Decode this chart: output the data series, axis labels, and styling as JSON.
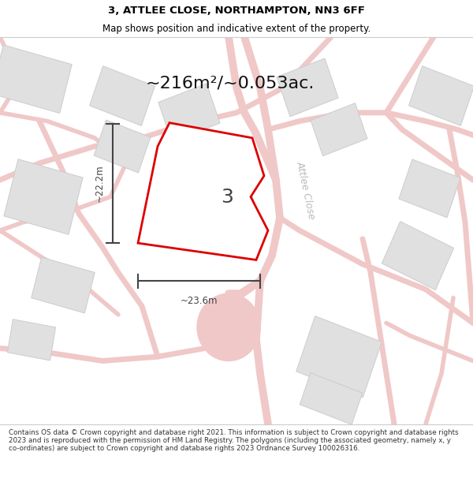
{
  "title_line1": "3, ATTLEE CLOSE, NORTHAMPTON, NN3 6FF",
  "title_line2": "Map shows position and indicative extent of the property.",
  "area_label": "~216m²/~0.053ac.",
  "number_label": "3",
  "width_label": "~23.6m",
  "height_label": "~22.2m",
  "street_label": "Attlee Close",
  "footer_text": "Contains OS data © Crown copyright and database right 2021. This information is subject to Crown copyright and database rights 2023 and is reproduced with the permission of HM Land Registry. The polygons (including the associated geometry, namely x, y co-ordinates) are subject to Crown copyright and database rights 2023 Ordnance Survey 100026316.",
  "bg_color": "#ffffff",
  "map_bg": "#f8f5f5",
  "road_color": "#f0c8c8",
  "road_lw": 1.2,
  "building_color": "#e0e0e0",
  "building_edge": "#cccccc",
  "plot_color": "#ffffff",
  "plot_edge": "#dd0000",
  "plot_edge_width": 2.0,
  "dim_color": "#444444",
  "street_label_color": "#bbbbbb",
  "title_color": "#000000",
  "footer_color": "#333333",
  "title_fontsize": 9.5,
  "subtitle_fontsize": 8.5,
  "area_fontsize": 16,
  "num_fontsize": 18,
  "dim_fontsize": 8.5,
  "street_fontsize": 9,
  "footer_fontsize": 6.3
}
